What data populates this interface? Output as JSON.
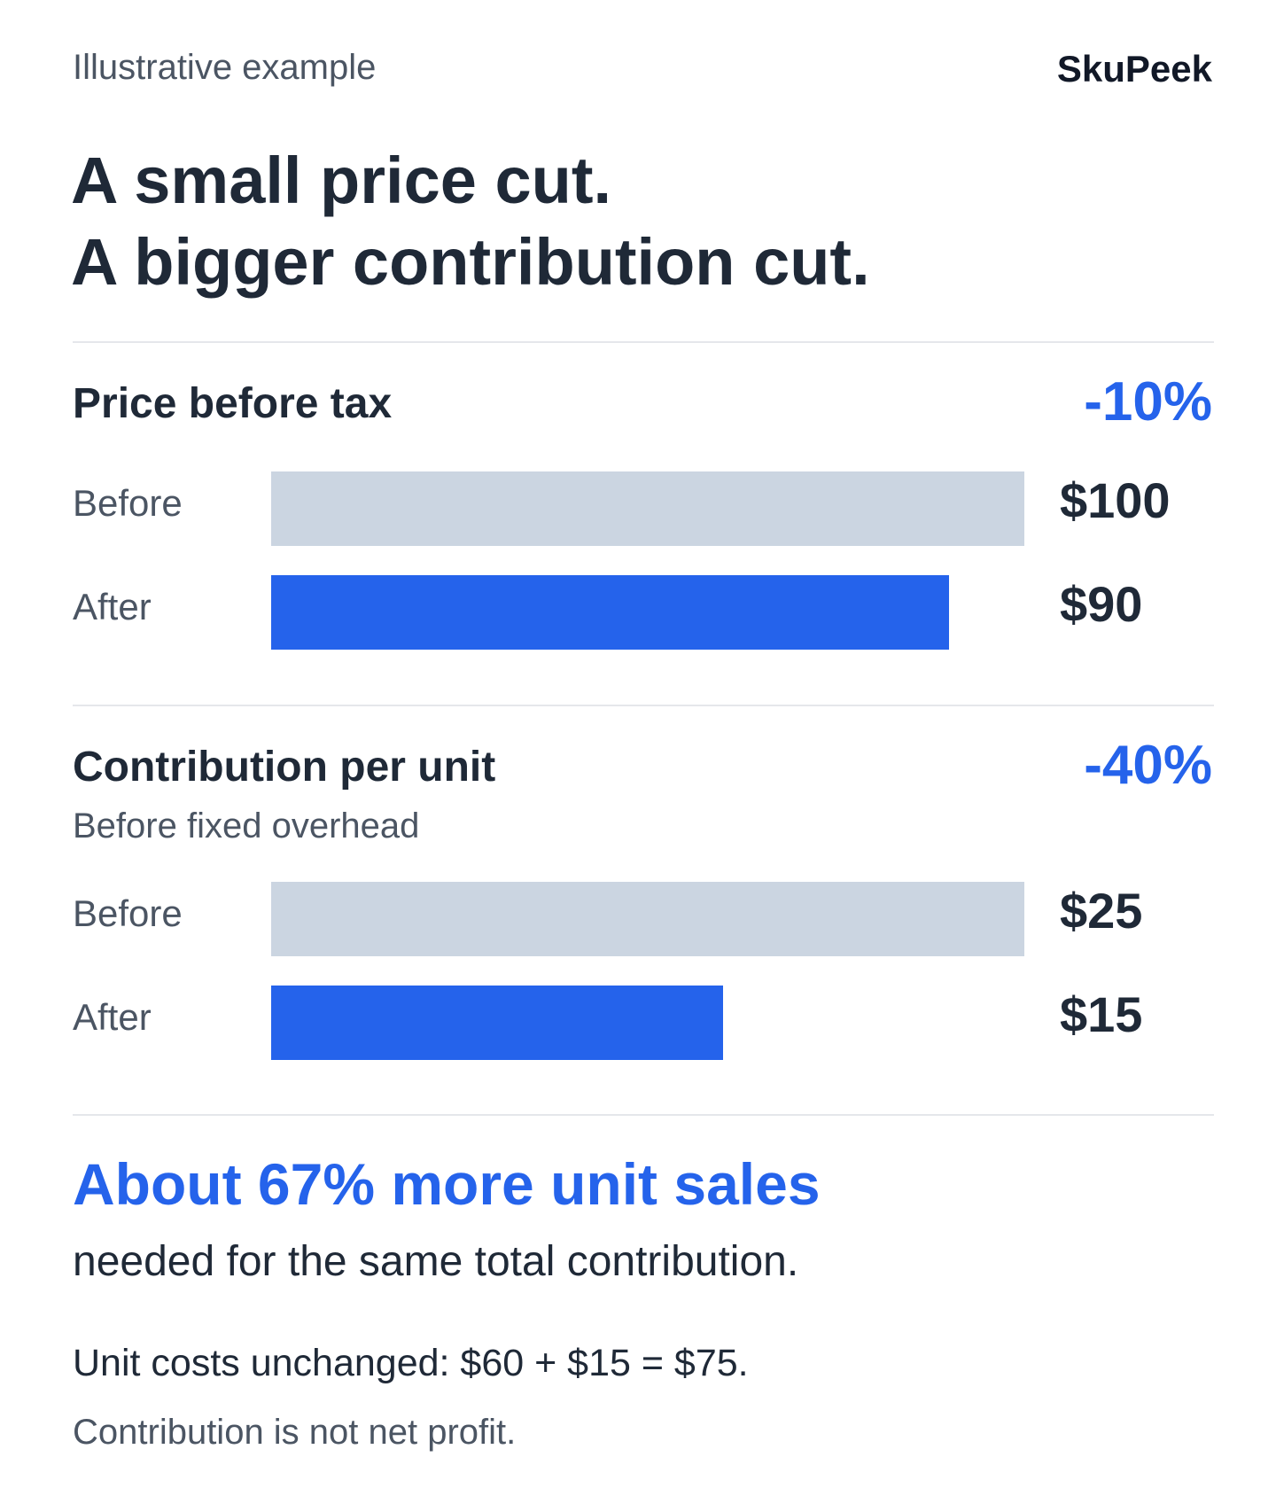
{
  "eyebrow": "Illustrative example",
  "brand": "SkuPeek",
  "title": {
    "line1": "A small price cut.",
    "line2": "A bigger contribution cut."
  },
  "colors": {
    "accent": "#2563eb",
    "before_bar": "#cbd5e1",
    "text": "#1f2937",
    "muted": "#4b5563",
    "divider": "#e5e7eb"
  },
  "chart_data": [
    {
      "type": "bar",
      "orientation": "horizontal",
      "title": "Price before tax",
      "subtitle": "",
      "change": "-10%",
      "categories": [
        "Before",
        "After"
      ],
      "values": [
        100,
        90
      ],
      "value_labels": [
        "$100",
        "$90"
      ],
      "xlim": [
        0,
        100
      ]
    },
    {
      "type": "bar",
      "orientation": "horizontal",
      "title": "Contribution per unit",
      "subtitle": "Before fixed overhead",
      "change": "-40%",
      "categories": [
        "Before",
        "After"
      ],
      "values": [
        25,
        15
      ],
      "value_labels": [
        "$25",
        "$15"
      ],
      "xlim": [
        0,
        25
      ]
    }
  ],
  "summary": {
    "headline": "About 67% more unit sales",
    "subline": "needed for the same total contribution.",
    "note": "Unit costs unchanged: $60 + $15 = $75.",
    "footnote": "Contribution is not net profit."
  }
}
